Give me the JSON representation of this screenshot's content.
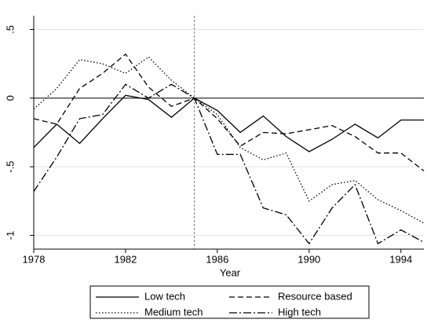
{
  "chart_data": {
    "type": "line",
    "x_label": "Year",
    "x": [
      1978,
      1979,
      1980,
      1981,
      1982,
      1983,
      1984,
      1985,
      1986,
      1987,
      1988,
      1989,
      1990,
      1991,
      1992,
      1993,
      1994,
      1995
    ],
    "series": [
      {
        "name": "Low tech",
        "color": "#000000",
        "dash": "none",
        "values": [
          -0.36,
          -0.19,
          -0.33,
          -0.15,
          0.02,
          -0.01,
          -0.14,
          0,
          -0.09,
          -0.25,
          -0.13,
          -0.28,
          -0.39,
          -0.3,
          -0.19,
          -0.29,
          -0.16,
          -0.16
        ]
      },
      {
        "name": "Resource based",
        "color": "#000000",
        "dash": "7 4",
        "values": [
          -0.15,
          -0.19,
          0.07,
          0.18,
          0.32,
          0.08,
          -0.06,
          0,
          -0.15,
          -0.35,
          -0.25,
          -0.26,
          -0.23,
          -0.2,
          -0.28,
          -0.4,
          -0.4,
          -0.53
        ]
      },
      {
        "name": "Medium tech",
        "color": "#000000",
        "dash": "1.5 2.5",
        "values": [
          -0.08,
          0.07,
          0.28,
          0.25,
          0.18,
          0.3,
          0.13,
          0,
          -0.12,
          -0.36,
          -0.45,
          -0.4,
          -0.75,
          -0.63,
          -0.6,
          -0.74,
          -0.82,
          -0.91
        ]
      },
      {
        "name": "High tech",
        "color": "#000000",
        "dash": "10 3 2 3",
        "values": [
          -0.68,
          -0.43,
          -0.15,
          -0.12,
          0.1,
          0,
          0.1,
          0,
          -0.41,
          -0.41,
          -0.8,
          -0.85,
          -1.06,
          -0.8,
          -0.63,
          -1.06,
          -0.96,
          -1.05
        ]
      }
    ],
    "xlim": [
      1978,
      1995
    ],
    "xticks": [
      1978,
      1982,
      1986,
      1990,
      1994
    ],
    "ylim": [
      -1.1,
      0.6
    ],
    "yticks": [
      {
        "value": -1,
        "label": "-1"
      },
      {
        "value": -0.5,
        "label": "-.5"
      },
      0,
      {
        "value": 0.5,
        "label": ".5"
      }
    ],
    "grid": true,
    "vline": 1985,
    "hline": 0,
    "legend": "bottom"
  }
}
